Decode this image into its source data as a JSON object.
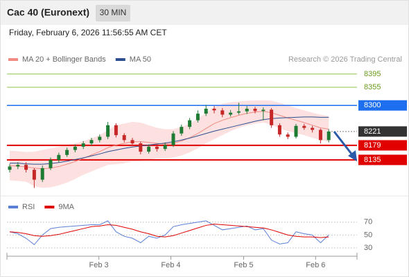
{
  "header": {
    "title": "Cac 40 (Euronext)",
    "interval": "30 MIN",
    "timestamp": "Friday, February 6, 2026 11:56:55 AM CET"
  },
  "chart_data": [
    {
      "type": "candlestick",
      "legend": [
        {
          "name": "MA 20 + Bollinger Bands",
          "color": "#f28b82"
        },
        {
          "name": "MA 50",
          "color": "#2c4f8f"
        }
      ],
      "credit": "Research © 2026 Trading Central",
      "open": [
        8105,
        8115,
        8120,
        8105,
        8075,
        8110,
        8135,
        8150,
        8165,
        8175,
        8185,
        8195,
        8205,
        8240,
        8210,
        8195,
        8185,
        8160,
        8175,
        8168,
        8180,
        8215,
        8235,
        8255,
        8275,
        8290,
        8285,
        8272,
        8278,
        8282,
        8290,
        8283,
        8287,
        8240,
        8212,
        8205,
        8238,
        8232,
        8226,
        8195
      ],
      "high": [
        8123,
        8128,
        8128,
        8110,
        8118,
        8142,
        8157,
        8172,
        8182,
        8192,
        8202,
        8212,
        8250,
        8246,
        8216,
        8202,
        8190,
        8182,
        8182,
        8188,
        8222,
        8242,
        8262,
        8285,
        8302,
        8298,
        8292,
        8286,
        8308,
        8298,
        8296,
        8294,
        8292,
        8246,
        8218,
        8244,
        8244,
        8238,
        8230,
        8228
      ],
      "low": [
        8097,
        8107,
        8097,
        8050,
        8068,
        8104,
        8128,
        8144,
        8158,
        8168,
        8178,
        8188,
        8198,
        8203,
        8188,
        8178,
        8152,
        8154,
        8160,
        8162,
        8174,
        8208,
        8228,
        8248,
        8268,
        8276,
        8264,
        8266,
        8272,
        8274,
        8276,
        8255,
        8232,
        8205,
        8198,
        8200,
        8226,
        8218,
        8185,
        8188
      ],
      "close": [
        8115,
        8120,
        8105,
        8075,
        8110,
        8135,
        8150,
        8165,
        8175,
        8185,
        8195,
        8205,
        8240,
        8210,
        8195,
        8185,
        8160,
        8175,
        8168,
        8180,
        8215,
        8235,
        8255,
        8275,
        8290,
        8285,
        8272,
        8278,
        8282,
        8290,
        8283,
        8287,
        8240,
        8212,
        8205,
        8238,
        8232,
        8226,
        8195,
        8221
      ],
      "up_color": "#1e7b34",
      "down_color": "#c62828",
      "ma20": [
        8118,
        8116,
        8114,
        8110,
        8108,
        8110,
        8115,
        8122,
        8130,
        8140,
        8150,
        8160,
        8172,
        8180,
        8185,
        8190,
        8190,
        8188,
        8185,
        8183,
        8185,
        8192,
        8202,
        8215,
        8230,
        8245,
        8255,
        8263,
        8270,
        8276,
        8280,
        8282,
        8278,
        8270,
        8262,
        8255,
        8248,
        8240,
        8232,
        8228
      ],
      "ma50": [
        8125,
        8125,
        8123,
        8122,
        8122,
        8124,
        8127,
        8131,
        8136,
        8141,
        8147,
        8153,
        8160,
        8165,
        8170,
        8174,
        8177,
        8180,
        8183,
        8186,
        8190,
        8195,
        8201,
        8208,
        8215,
        8222,
        8228,
        8234,
        8240,
        8246,
        8252,
        8257,
        8260,
        8262,
        8263,
        8264,
        8265,
        8265,
        8264,
        8264
      ],
      "bb_upper": [
        8163,
        8161,
        8159,
        8160,
        8165,
        8170,
        8175,
        8180,
        8185,
        8192,
        8200,
        8210,
        8225,
        8240,
        8245,
        8250,
        8248,
        8240,
        8232,
        8228,
        8228,
        8235,
        8245,
        8260,
        8278,
        8295,
        8305,
        8310,
        8312,
        8314,
        8315,
        8316,
        8314,
        8308,
        8300,
        8292,
        8285,
        8278,
        8272,
        8268
      ],
      "bb_lower": [
        8073,
        8071,
        8069,
        8055,
        8050,
        8052,
        8058,
        8066,
        8077,
        8090,
        8100,
        8110,
        8120,
        8122,
        8125,
        8130,
        8132,
        8136,
        8140,
        8140,
        8142,
        8148,
        8158,
        8170,
        8185,
        8198,
        8210,
        8222,
        8232,
        8240,
        8245,
        8248,
        8242,
        8230,
        8222,
        8216,
        8210,
        8202,
        8195,
        8190
      ],
      "ylim": [
        8032,
        8420
      ],
      "levels": [
        {
          "value": 8395,
          "color": "#8bc34a",
          "style": "plain"
        },
        {
          "value": 8355,
          "color": "#8bc34a",
          "style": "plain"
        },
        {
          "value": 8300,
          "color": "#1e6ff0",
          "style": "box"
        },
        {
          "value": 8221,
          "color": "#333333",
          "style": "current"
        },
        {
          "value": 8179,
          "color": "#e00000",
          "style": "box"
        },
        {
          "value": 8135,
          "color": "#e00000",
          "style": "box"
        }
      ]
    },
    {
      "type": "line",
      "legend": [
        {
          "name": "RSI",
          "color": "#5b7fd6"
        },
        {
          "name": "9MA",
          "color": "#e00000"
        }
      ],
      "series": [
        {
          "name": "RSI",
          "color": "#5b7fd6",
          "values": [
            55,
            52,
            45,
            35,
            50,
            60,
            62,
            63,
            64,
            65,
            66,
            66,
            72,
            55,
            48,
            45,
            38,
            48,
            45,
            50,
            63,
            66,
            68,
            70,
            72,
            65,
            58,
            60,
            62,
            64,
            58,
            60,
            42,
            36,
            38,
            55,
            52,
            50,
            38,
            50
          ]
        },
        {
          "name": "9MA",
          "color": "#e00000",
          "values": [
            55,
            54,
            52,
            49,
            48,
            49,
            51,
            54,
            57,
            60,
            63,
            64,
            66,
            65,
            62,
            59,
            55,
            52,
            48,
            47,
            49,
            53,
            57,
            61,
            65,
            67,
            66,
            65,
            64,
            63,
            62,
            61,
            58,
            54,
            50,
            48,
            47,
            47,
            46,
            47
          ]
        }
      ],
      "ylim": [
        17,
        87
      ],
      "yticks": [
        70,
        50,
        30
      ],
      "xticks": [
        {
          "value": 10.9,
          "label": "Feb 3"
        },
        {
          "value": 19.7,
          "label": "Feb 4"
        },
        {
          "value": 28.6,
          "label": "Feb 5"
        },
        {
          "value": 37.4,
          "label": "Feb 6"
        }
      ]
    }
  ]
}
